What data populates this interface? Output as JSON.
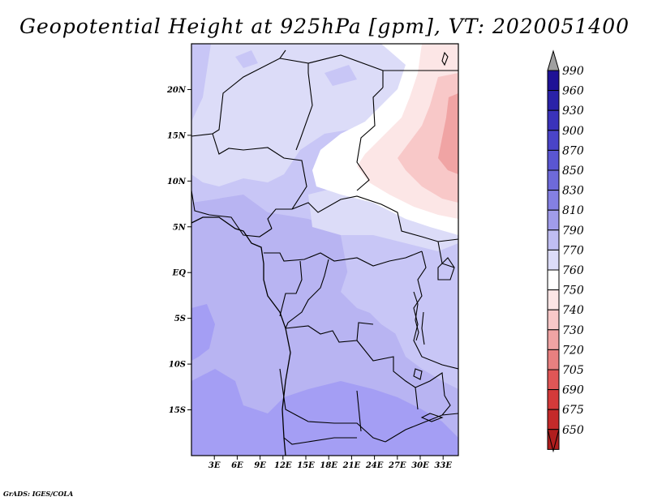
{
  "title": "Geopotential Height at 925hPa [gpm], VT: 2020051400",
  "credit": "GrADS: IGES/COLA",
  "map": {
    "region": "Central Africa",
    "lon_range_deg": [
      0,
      35
    ],
    "lat_range_deg": [
      -20,
      25
    ],
    "lat_ticks": [
      {
        "value": 20,
        "label": "20N"
      },
      {
        "value": 15,
        "label": "15N"
      },
      {
        "value": 10,
        "label": "10N"
      },
      {
        "value": 5,
        "label": "5N"
      },
      {
        "value": 0,
        "label": "EQ"
      },
      {
        "value": -5,
        "label": "5S"
      },
      {
        "value": -10,
        "label": "10S"
      },
      {
        "value": -15,
        "label": "15S"
      }
    ],
    "lon_ticks": [
      {
        "value": 3,
        "label": "3E"
      },
      {
        "value": 6,
        "label": "6E"
      },
      {
        "value": 9,
        "label": "9E"
      },
      {
        "value": 12,
        "label": "12E"
      },
      {
        "value": 15,
        "label": "15E"
      },
      {
        "value": 18,
        "label": "18E"
      },
      {
        "value": 21,
        "label": "21E"
      },
      {
        "value": 24,
        "label": "24E"
      },
      {
        "value": 27,
        "label": "27E"
      },
      {
        "value": 30,
        "label": "30E"
      },
      {
        "value": 33,
        "label": "33E"
      }
    ]
  },
  "colorbar": {
    "labels": [
      "990",
      "960",
      "930",
      "900",
      "870",
      "850",
      "830",
      "810",
      "790",
      "770",
      "760",
      "750",
      "740",
      "730",
      "720",
      "705",
      "690",
      "675",
      "650"
    ],
    "colors": [
      "#1e1296",
      "#2a22a8",
      "#3a32ba",
      "#4a44c8",
      "#5a56d2",
      "#6e6ada",
      "#8480e2",
      "#a09cea",
      "#c0bef2",
      "#dcdcf8",
      "#ffffff",
      "#fce6e6",
      "#f8c8c8",
      "#f0a4a4",
      "#e88080",
      "#e05656",
      "#d43a3a",
      "#c42a2a",
      "#b01e1e"
    ],
    "top_arrow_color": "#a0a0a0",
    "bottom_arrow_color": "#b01e1e"
  },
  "field_colors": {
    "deep": "#a49ef4",
    "mid": "#b8b4f2",
    "light": "#c8c6f6",
    "pale": "#dcdcf8",
    "white": "#ffffff",
    "pink1": "#fce6e6",
    "pink2": "#f8c8c8",
    "pink3": "#f0a4a4"
  }
}
